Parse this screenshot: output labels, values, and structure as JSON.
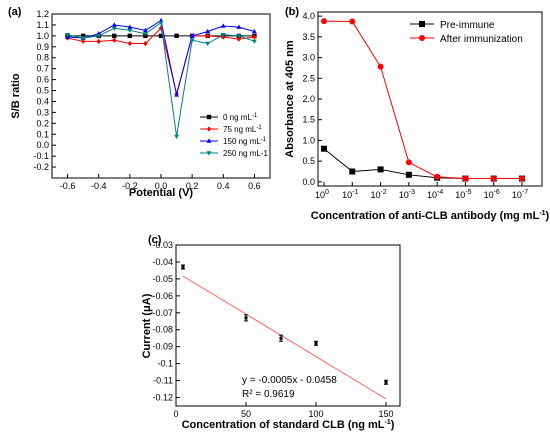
{
  "chart_data": [
    {
      "panel_label": "(a)",
      "type": "line",
      "xlabel": "Potential (V)",
      "ylabel": "S/B ratio",
      "xlim": [
        -0.7,
        0.7
      ],
      "ylim": [
        -0.3,
        1.2
      ],
      "xticks": [
        -0.6,
        -0.4,
        -0.2,
        0.0,
        0.2,
        0.4,
        0.6
      ],
      "xtick_labels": [
        "-0.6",
        "-0.4",
        "-0.2",
        "0.0",
        "0.2",
        "0.4",
        "0.6"
      ],
      "yticks": [
        -0.2,
        -0.1,
        0.0,
        0.1,
        0.2,
        0.3,
        0.4,
        0.5,
        0.6,
        0.7,
        0.8,
        0.9,
        1.0,
        1.1,
        1.2
      ],
      "ytick_labels": [
        "-0.2",
        "-0.1",
        "0.0",
        "0.1",
        "0.2",
        "0.3",
        "0.4",
        "0.5",
        "0.6",
        "0.7",
        "0.8",
        "0.9",
        "1.0",
        "1.1",
        "1.2"
      ],
      "x": [
        -0.6,
        -0.5,
        -0.4,
        -0.3,
        -0.2,
        -0.1,
        0.0,
        0.1,
        0.2,
        0.3,
        0.4,
        0.5,
        0.6
      ],
      "legend_position": "bottom-right",
      "series": [
        {
          "name": "0 ng mL",
          "sup": "-1",
          "color": "#000000",
          "marker": "square",
          "values": [
            1.0,
            1.0,
            1.0,
            1.0,
            1.0,
            1.0,
            1.0,
            1.0,
            1.0,
            1.0,
            1.0,
            1.0,
            1.0
          ]
        },
        {
          "name": "75 ng mL",
          "sup": "-1",
          "color": "#ff0000",
          "marker": "diamond",
          "values": [
            0.98,
            0.95,
            0.95,
            0.96,
            0.93,
            0.93,
            1.07,
            0.47,
            1.0,
            1.0,
            0.99,
            0.97,
            0.99
          ]
        },
        {
          "name": "150 ng mL",
          "sup": "-1",
          "color": "#0000ff",
          "marker": "triangle-up",
          "values": [
            0.99,
            0.98,
            1.02,
            1.1,
            1.08,
            1.05,
            1.14,
            0.46,
            1.0,
            1.04,
            1.09,
            1.08,
            1.04
          ]
        },
        {
          "name": "250 ng mL-1",
          "sup": "",
          "color": "#008080",
          "marker": "triangle-down",
          "values": [
            1.01,
            0.98,
            1.0,
            1.07,
            1.05,
            1.02,
            1.12,
            0.08,
            0.96,
            0.93,
            1.01,
            1.0,
            0.95
          ]
        }
      ]
    },
    {
      "panel_label": "(b)",
      "type": "line",
      "xlabel": "Concentration of anti-CLB antibody (mg mL",
      "xlabel_sup": "-1",
      "xlabel_end": ")",
      "ylabel": "Absorbance at 405 nm",
      "ylim": [
        -0.1,
        4.1
      ],
      "yticks": [
        0.0,
        0.5,
        1.0,
        1.5,
        2.0,
        2.5,
        3.0,
        3.5,
        4.0
      ],
      "ytick_labels": [
        "0.0",
        "0.5",
        "1.0",
        "1.5",
        "2.0",
        "2.5",
        "3.0",
        "3.5",
        "4.0"
      ],
      "categories": [
        "10^0",
        "10^-1",
        "10^-2",
        "10^-3",
        "10^-4",
        "10^-5",
        "10^-6",
        "10^-7"
      ],
      "x_exponents": [
        "0",
        "-1",
        "-2",
        "-3",
        "-4",
        "-5",
        "-6",
        "-7"
      ],
      "legend_position": "top-right",
      "series": [
        {
          "name": "Pre-immune",
          "color": "#000000",
          "marker": "square",
          "values": [
            0.8,
            0.25,
            0.3,
            0.17,
            0.1,
            0.08,
            0.08,
            0.08
          ]
        },
        {
          "name": "After immunization",
          "color": "#ff0000",
          "marker": "circle",
          "values": [
            3.88,
            3.87,
            2.78,
            0.47,
            0.12,
            0.08,
            0.08,
            0.08
          ]
        }
      ]
    },
    {
      "panel_label": "(c)",
      "type": "scatter",
      "xlabel": "Concentration of standard CLB (ng mL",
      "xlabel_sup": "-1",
      "xlabel_end": ")",
      "ylabel": "Current (μA)",
      "xlim": [
        0,
        160
      ],
      "ylim": [
        -0.125,
        -0.03
      ],
      "xticks": [
        0,
        50,
        100,
        150
      ],
      "xtick_labels": [
        "0",
        "50",
        "100",
        "150"
      ],
      "yticks": [
        -0.03,
        -0.04,
        -0.05,
        -0.06,
        -0.07,
        -0.08,
        -0.09,
        -0.1,
        -0.11,
        -0.12
      ],
      "ytick_labels": [
        "-0.03",
        "-0.04",
        "-0.05",
        "-0.06",
        "-0.07",
        "-0.08",
        "-0.09",
        "-0.1",
        "-0.11",
        "-0.12"
      ],
      "points": [
        {
          "x": 5,
          "y": -0.043,
          "err": 0.0012
        },
        {
          "x": 50,
          "y": -0.073,
          "err": 0.0018
        },
        {
          "x": 75,
          "y": -0.085,
          "err": 0.0018
        },
        {
          "x": 100,
          "y": -0.088,
          "err": 0.0012
        },
        {
          "x": 150,
          "y": -0.111,
          "err": 0.0012
        }
      ],
      "fit_color": "#ff6666",
      "fit": {
        "slope": -0.0005,
        "intercept": -0.0458
      },
      "equation": "y = -0.0005x - 0.0458",
      "r_squared": "R² = 0.9619"
    }
  ]
}
